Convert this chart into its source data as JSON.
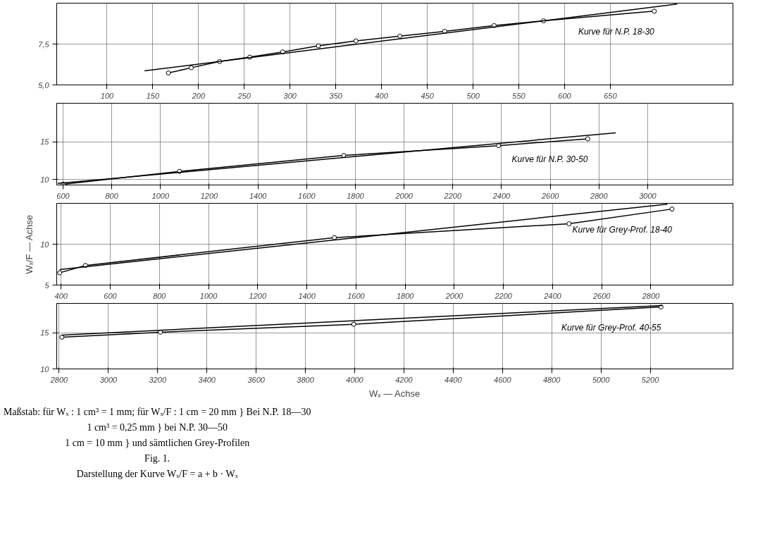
{
  "chart_data": [
    {
      "type": "line",
      "xlim": [
        45,
        784
      ],
      "xticks": [
        100,
        150,
        200,
        250,
        300,
        350,
        400,
        450,
        500,
        550,
        600,
        650
      ],
      "ylim": [
        5,
        10
      ],
      "yticks": [
        {
          "value": 5,
          "label": "5,0"
        },
        {
          "value": 7.5,
          "label": "7,5"
        }
      ],
      "grid": true,
      "legend": false,
      "series": [
        {
          "name": "Kurve für N.P. 18-30",
          "color": "#000000",
          "marker": "circle",
          "x": [
            167,
            192,
            223,
            256,
            292,
            331,
            372,
            420,
            469,
            523,
            577,
            698
          ],
          "values": [
            5.73,
            6.05,
            6.43,
            6.7,
            7.02,
            7.39,
            7.69,
            7.98,
            8.28,
            8.63,
            8.92,
            9.51
          ]
        },
        {
          "color": "#000000",
          "marker": "none",
          "x": [
            141,
            723
          ],
          "values": [
            5.86,
            9.95
          ]
        }
      ]
    },
    {
      "type": "line",
      "xlim": [
        574,
        3350
      ],
      "xticks": [
        600,
        800,
        1000,
        1200,
        1400,
        1600,
        1800,
        2000,
        2200,
        2400,
        2600,
        2800,
        3000
      ],
      "ylim": [
        9.3,
        20.1
      ],
      "yticks": [
        10,
        15
      ],
      "grid": true,
      "legend": false,
      "series": [
        {
          "name": "Kurve für N.P. 30-50",
          "color": "#000000",
          "marker": "circle",
          "x": [
            600,
            1078,
            1752,
            2388,
            2754
          ],
          "values": [
            9.4,
            11.1,
            13.2,
            14.5,
            15.4
          ]
        },
        {
          "color": "#000000",
          "marker": "none",
          "x": [
            578,
            2869
          ],
          "values": [
            9.5,
            16.2
          ]
        }
      ]
    },
    {
      "type": "line",
      "xlim": [
        382,
        3134
      ],
      "xticks": [
        400,
        600,
        800,
        1000,
        1200,
        1400,
        1600,
        1800,
        2000,
        2200,
        2400,
        2600,
        2800
      ],
      "ylim": [
        5,
        15
      ],
      "yticks": [
        5,
        10
      ],
      "grid": true,
      "legend": false,
      "ylabel": "Wₓ/F — Achse",
      "series": [
        {
          "name": "Kurve für Grey-Prof. 18-40",
          "color": "#000000",
          "marker": "circle",
          "x": [
            394,
            499,
            1512,
            2467,
            2886
          ],
          "values": [
            6.5,
            7.4,
            10.8,
            12.5,
            14.3
          ]
        },
        {
          "color": "#000000",
          "marker": "none",
          "x": [
            394,
            2867
          ],
          "values": [
            6.9,
            14.9
          ]
        }
      ]
    },
    {
      "type": "line",
      "xlim": [
        2790,
        5536
      ],
      "xticks": [
        2800,
        3000,
        3200,
        3400,
        3600,
        3800,
        4000,
        4200,
        4400,
        4600,
        4800,
        5000,
        5200
      ],
      "ylim": [
        10,
        19.1
      ],
      "yticks": [
        10,
        15
      ],
      "grid": true,
      "legend": false,
      "xlabel": "Wₓ — Achse",
      "annotations": [
        "Maßstab:  für Wₓ : 1 cm³ = 1 mm;  für Wₓ/F : 1 cm = 20 mm  } Bei N.P. 18—30",
        "1 cm³ = 0,25 mm  } bei N.P. 30—50",
        "1 cm = 10 mm  } und sämtlichen Grey-Profilen",
        "Fig. 1.",
        "Darstellung der Kurve Wₓ/F = a + b · Wₓ"
      ],
      "series": [
        {
          "name": "Kurve für Grey-Prof. 40-55",
          "color": "#000000",
          "marker": "circle",
          "x": [
            2811,
            3211,
            3996,
            5244
          ],
          "values": [
            14.4,
            15.1,
            16.2,
            18.6
          ]
        },
        {
          "color": "#000000",
          "marker": "none",
          "x": [
            2811,
            5250
          ],
          "values": [
            14.7,
            18.8
          ]
        }
      ]
    }
  ]
}
